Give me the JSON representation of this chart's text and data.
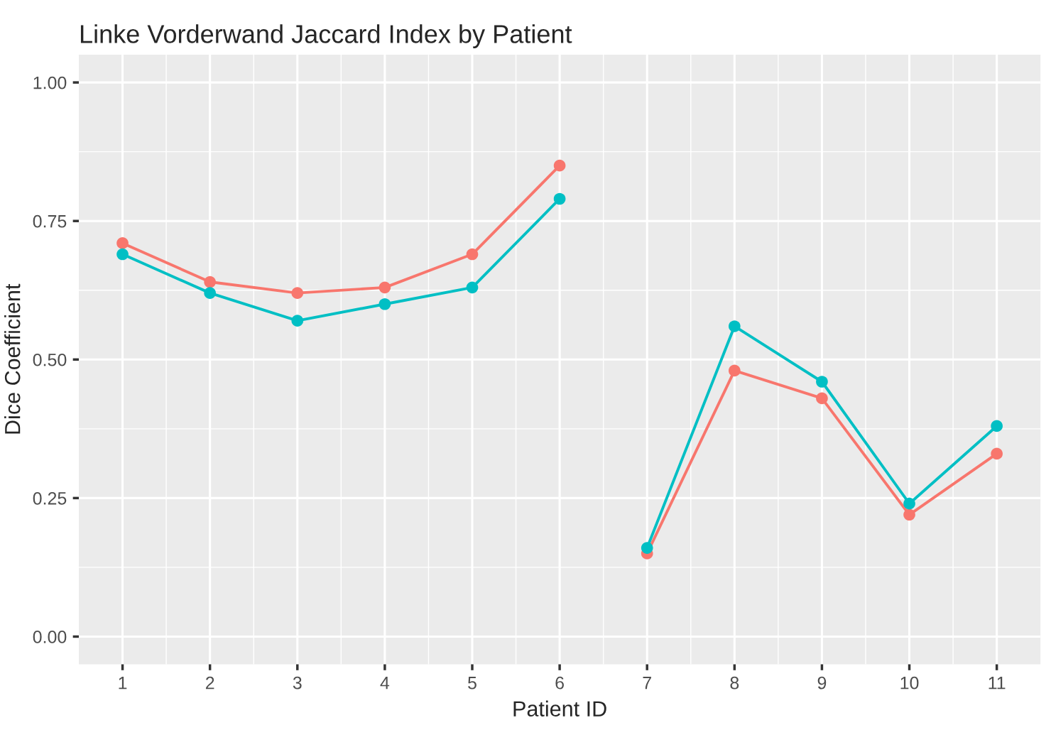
{
  "chart_data": {
    "type": "line",
    "title": "Linke Vorderwand Jaccard Index by Patient",
    "xlabel": "Patient ID",
    "ylabel": "Dice Coefficient",
    "series": [
      {
        "color": "#f8766d",
        "x": [
          1,
          2,
          3,
          4,
          5,
          6
        ],
        "values": [
          0.71,
          0.64,
          0.62,
          0.63,
          0.69,
          0.85
        ]
      },
      {
        "color": "#00bfc4",
        "x": [
          1,
          2,
          3,
          4,
          5,
          6
        ],
        "values": [
          0.69,
          0.62,
          0.57,
          0.6,
          0.63,
          0.79
        ]
      },
      {
        "color": "#f8766d",
        "x": [
          7,
          8,
          9,
          10,
          11
        ],
        "values": [
          0.15,
          0.48,
          0.43,
          0.22,
          0.33
        ]
      },
      {
        "color": "#00bfc4",
        "x": [
          7,
          8,
          9,
          10,
          11
        ],
        "values": [
          0.16,
          0.56,
          0.46,
          0.24,
          0.38
        ]
      }
    ],
    "xlim": [
      0.5,
      11.5
    ],
    "xticks": [
      1,
      2,
      3,
      4,
      5,
      6,
      7,
      8,
      9,
      10,
      11
    ],
    "ylim": [
      -0.05,
      1.05
    ],
    "yticks": [
      {
        "value": 0,
        "label": "0.00"
      },
      {
        "value": 0.25,
        "label": "0.25"
      },
      {
        "value": 0.5,
        "label": "0.50"
      },
      {
        "value": 0.75,
        "label": "0.75"
      },
      {
        "value": 1,
        "label": "1.00"
      }
    ],
    "grid": true,
    "marker": "circle",
    "line_style": "solid"
  }
}
